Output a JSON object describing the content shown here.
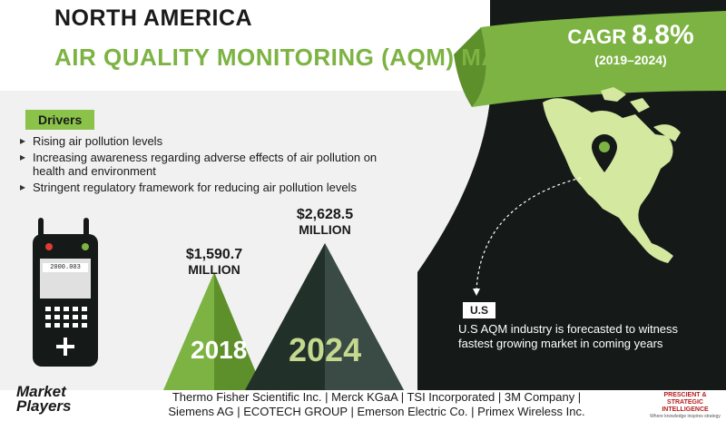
{
  "header": {
    "line1": "NORTH AMERICA",
    "line2": "AIR QUALITY MONITORING (AQM) MARKET"
  },
  "cagr": {
    "label": "CAGR",
    "value": "8.8%",
    "years": "(2019–2024)"
  },
  "drivers": {
    "title": "Drivers",
    "items": [
      "Rising air pollution levels",
      "Increasing awareness regarding adverse effects of air pollution on health and environment",
      "Stringent regulatory framework for reducing air pollution levels"
    ]
  },
  "device": {
    "screen_text": "2000.003",
    "icon": "air-quality-monitor-device-icon"
  },
  "market_values": [
    {
      "year": "2018",
      "amount": "$1,590.7",
      "unit": "MILLION"
    },
    {
      "year": "2024",
      "amount": "$2,628.5",
      "unit": "MILLION"
    }
  ],
  "region": {
    "tag": "U.S",
    "text": "U.S AQM industry is forecasted to witness fastest growing market in coming years",
    "icon": "map-pin-icon"
  },
  "footer": {
    "label_line1": "Market",
    "label_line2": "Players",
    "players_line1": "Thermo Fisher Scientific Inc. | Merck KGaA | TSI Incorporated | 3M Company |",
    "players_line2": "Siemens AG | ECOTECH GROUP | Emerson Electric Co. | Primex Wireless Inc.",
    "logo_line1": "PRESCIENT & STRATEGIC",
    "logo_line2": "INTELLIGENCE",
    "logo_tagline": "Where knowledge inspires strategy"
  },
  "colors": {
    "green": "#8bc34a",
    "dark": "#151a19",
    "light_bg": "#f1f1f1",
    "map": "#d4e8a0"
  }
}
